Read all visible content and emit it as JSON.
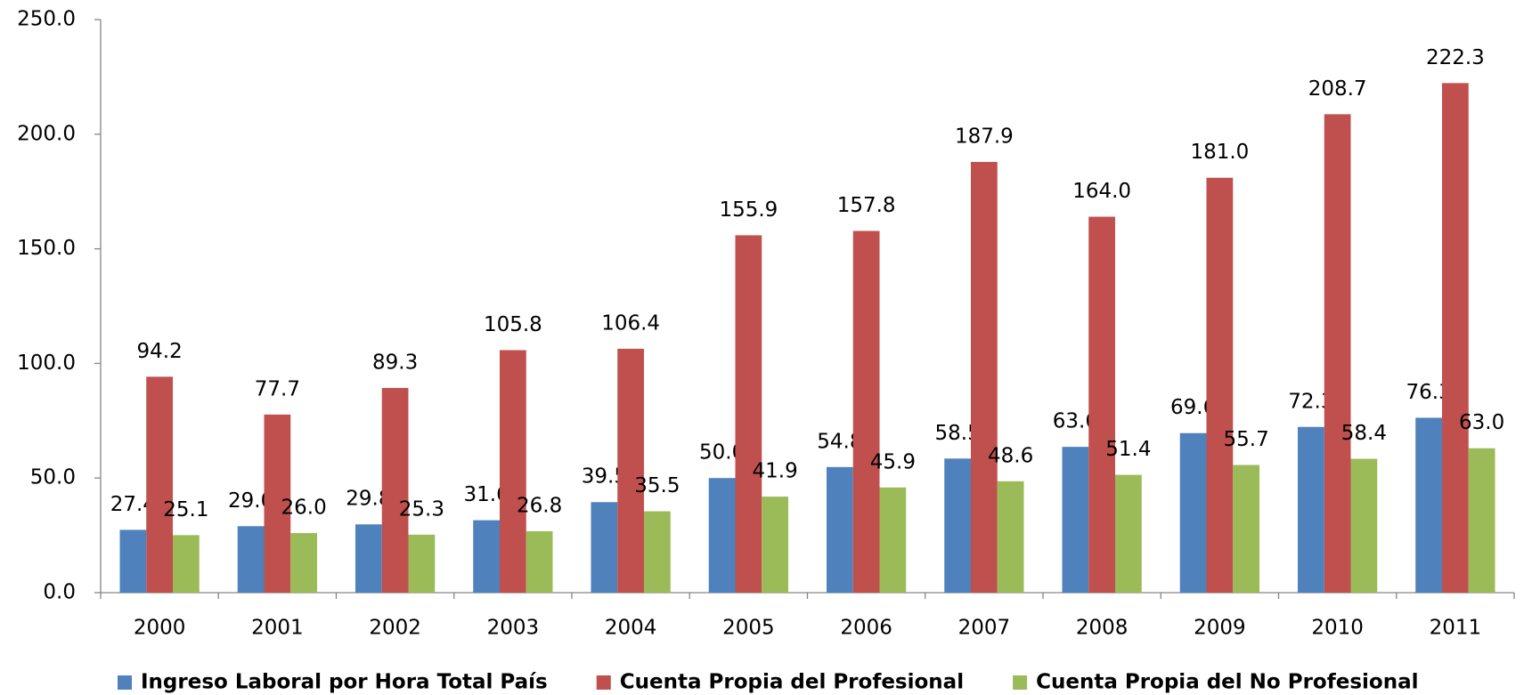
{
  "chart_data": {
    "type": "bar",
    "categories": [
      "2000",
      "2001",
      "2002",
      "2003",
      "2004",
      "2005",
      "2006",
      "2007",
      "2008",
      "2009",
      "2010",
      "2011"
    ],
    "series": [
      {
        "name": "Ingreso Laboral por Hora Total País",
        "color": "#4f81bd",
        "values": [
          27.4,
          29.0,
          29.8,
          31.6,
          39.5,
          50.0,
          54.8,
          58.5,
          63.6,
          69.6,
          72.3,
          76.3
        ],
        "value_labels": [
          "27.4",
          "29.0",
          "29.8",
          "31.6",
          "39.5",
          "50.0",
          "54.8",
          "58.5",
          "63.6",
          "69.6",
          "72.3",
          "76.3"
        ]
      },
      {
        "name": "Cuenta Propia del Profesional",
        "color": "#c0504d",
        "values": [
          94.2,
          77.7,
          89.3,
          105.8,
          106.4,
          155.9,
          157.8,
          187.9,
          164.0,
          181.0,
          208.7,
          222.3
        ],
        "value_labels": [
          "94.2",
          "77.7",
          "89.3",
          "105.8",
          "106.4",
          "155.9",
          "157.8",
          "187.9",
          "164.0",
          "181.0",
          "208.7",
          "222.3"
        ]
      },
      {
        "name": "Cuenta Propia del No Profesional",
        "color": "#9bbb59",
        "values": [
          25.1,
          26.0,
          25.3,
          26.8,
          35.5,
          41.9,
          45.9,
          48.6,
          51.4,
          55.7,
          58.4,
          63.0
        ],
        "value_labels": [
          "25.1",
          "26.0",
          "25.3",
          "26.8",
          "35.5",
          "41.9",
          "45.9",
          "48.6",
          "51.4",
          "55.7",
          "58.4",
          "63.0"
        ]
      }
    ],
    "ylim": [
      0,
      250
    ],
    "yticks": [
      {
        "value": 0,
        "label": "0.0"
      },
      {
        "value": 50,
        "label": "50.0"
      },
      {
        "value": 100,
        "label": "100.0"
      },
      {
        "value": 150,
        "label": "150.0"
      },
      {
        "value": 200,
        "label": "200.0"
      },
      {
        "value": 250,
        "label": "250.0"
      }
    ],
    "grid": false,
    "legend": "bottom"
  }
}
